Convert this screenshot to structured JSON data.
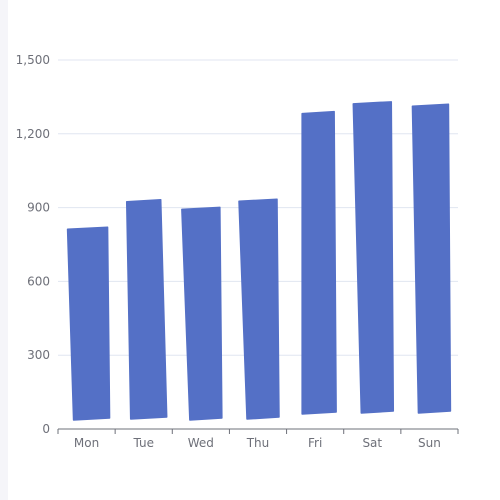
{
  "chart_data": {
    "type": "bar",
    "categories": [
      "Mon",
      "Tue",
      "Wed",
      "Thu",
      "Fri",
      "Sat",
      "Sun"
    ],
    "values": [
      820,
      932,
      901,
      934,
      1290,
      1330,
      1320
    ],
    "ylim": [
      0,
      1500
    ],
    "yticks": [
      0,
      300,
      600,
      900,
      1200,
      1500
    ],
    "ytick_labels": [
      "0",
      "300",
      "600",
      "900",
      "1,200",
      "1,500"
    ],
    "grid": true,
    "bar_style": "hand-drawn (sketch)",
    "colors": {
      "bar": "#5470c6",
      "grid": "#e0e6f1",
      "axis": "#6e7079"
    }
  }
}
